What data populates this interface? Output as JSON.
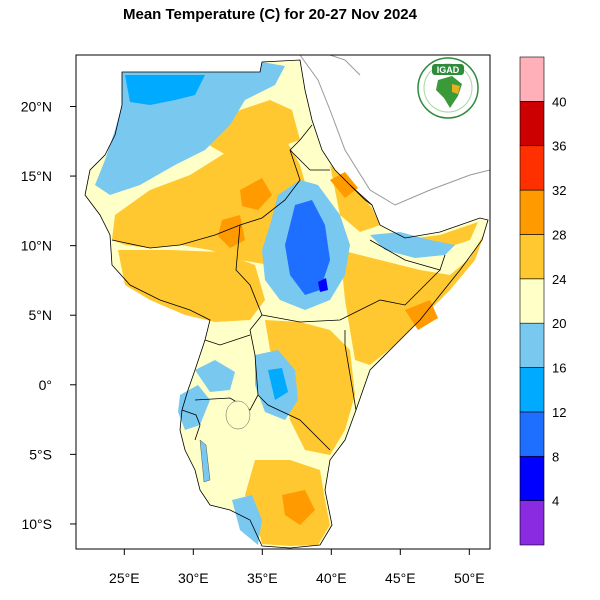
{
  "title": "Mean Temperature (C) for 20-27 Nov 2024",
  "logo": {
    "text": "IGAD",
    "colors": {
      "ring": "#2e8b3c",
      "africa": "#3a9a3a",
      "highlight": "#e8b020"
    }
  },
  "map": {
    "x_ticks": [
      {
        "value": 25,
        "label": "25°E"
      },
      {
        "value": 30,
        "label": "30°E"
      },
      {
        "value": 35,
        "label": "35°E"
      },
      {
        "value": 40,
        "label": "40°E"
      },
      {
        "value": 45,
        "label": "45°E"
      },
      {
        "value": 50,
        "label": "50°E"
      }
    ],
    "y_ticks": [
      {
        "value": 20,
        "label": "20°N"
      },
      {
        "value": 15,
        "label": "15°N"
      },
      {
        "value": 10,
        "label": "10°N"
      },
      {
        "value": 5,
        "label": "5°N"
      },
      {
        "value": 0,
        "label": "0°"
      },
      {
        "value": -5,
        "label": "5°S"
      },
      {
        "value": -10,
        "label": "10°S"
      }
    ],
    "lon_range": [
      21.5,
      51.5
    ],
    "lat_range": [
      -11.8,
      23.7
    ]
  },
  "colorbar": {
    "levels": [
      "4",
      "8",
      "12",
      "16",
      "20",
      "24",
      "28",
      "32",
      "36",
      "40"
    ],
    "colors": [
      "#8a2be2",
      "#0000ff",
      "#1e6fff",
      "#00aaff",
      "#78c8f0",
      "#ffffc8",
      "#ffc830",
      "#ff9a00",
      "#ff3000",
      "#cc0000",
      "#ffb0b8"
    ]
  },
  "palette": {
    "hot": "#ffc830",
    "warm": "#ffffc8",
    "mild": "#78c8f0",
    "cool": "#00aaff",
    "cold": "#1e6fff",
    "very_hot": "#ff9a00",
    "coldest": "#0000ff"
  }
}
